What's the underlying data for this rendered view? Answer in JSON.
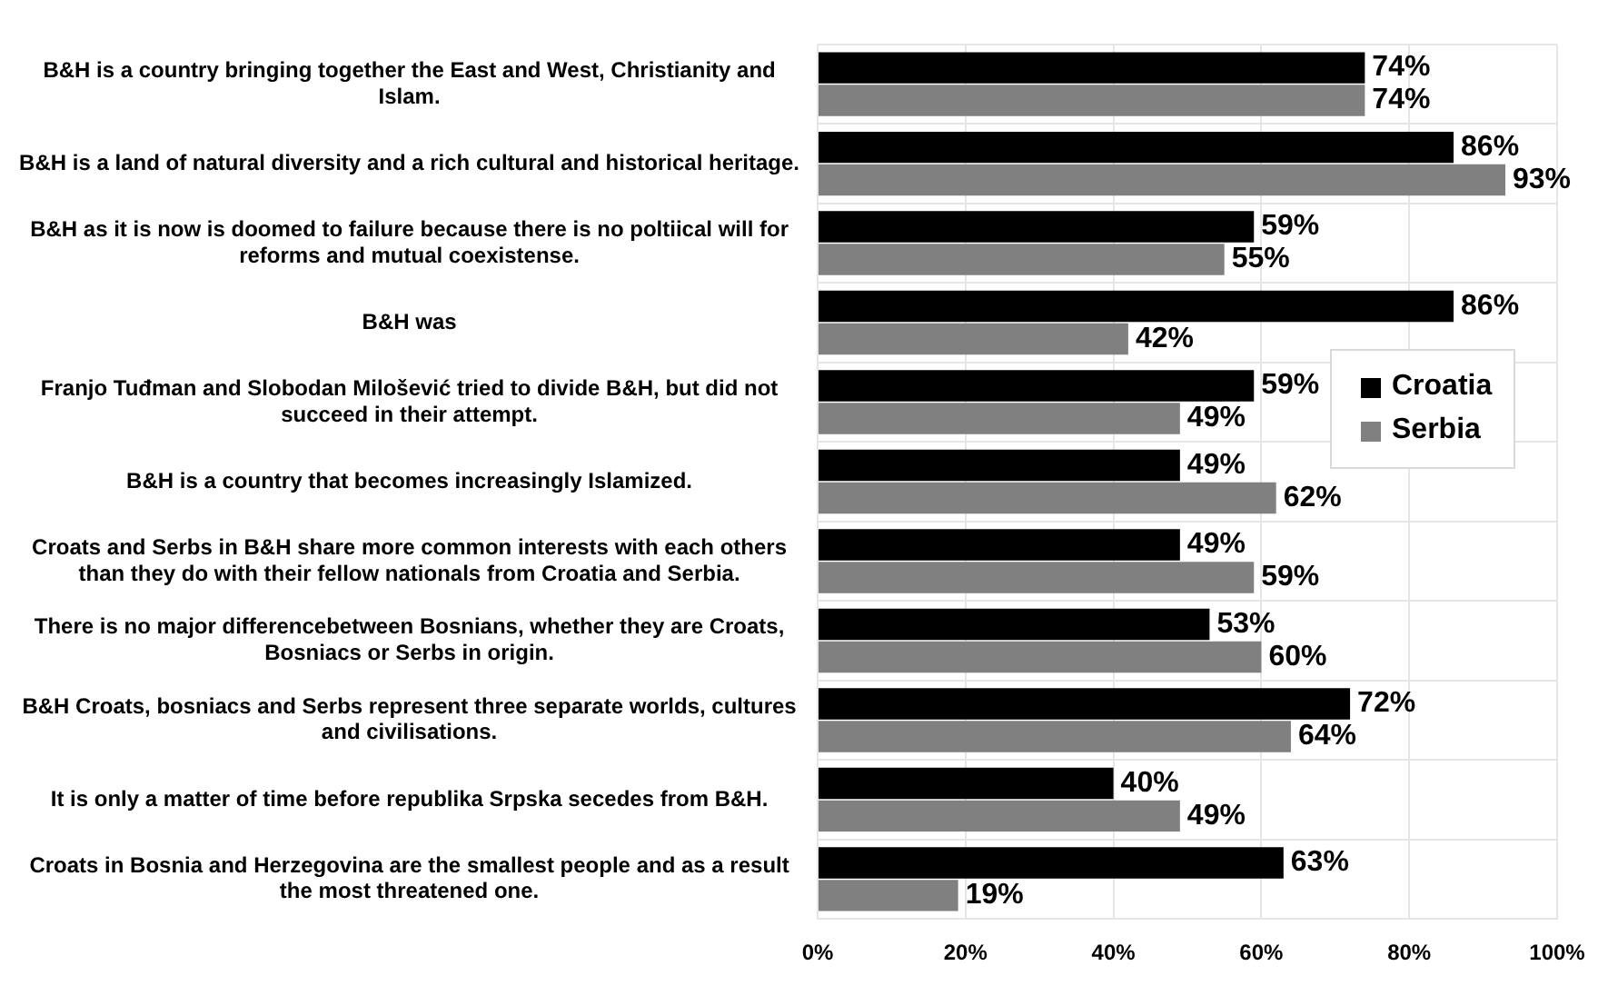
{
  "chart_data": {
    "type": "bar",
    "orientation": "horizontal",
    "categories": [
      "B&H is a country bringing together the East and West, Christianity and Islam.",
      "B&H is a land of natural diversity and a rich cultural and historical heritage.",
      "B&H as it is now is doomed to failure because there is no poltiical will for reforms and mutual coexistense.",
      "B&H was",
      "Franjo Tuđman and Slobodan Milošević tried to divide B&H, but did not succeed in their attempt.",
      "B&H is a country that becomes increasingly Islamized.",
      "Croats and Serbs in B&H share more common interests with each others than they do with their fellow nationals from Croatia and Serbia.",
      "There is no major differencebetween Bosnians, whether they are Croats, Bosniacs or Serbs in origin.",
      "B&H Croats, bosniacs and Serbs represent three separate worlds, cultures and civilisations.",
      "It is only a matter of time before republika Srpska secedes from B&H.",
      "Croats in Bosnia and Herzegovina are the smallest people and as a result the most threatened one."
    ],
    "series": [
      {
        "name": "Croatia",
        "color": "#000000",
        "values": [
          74,
          86,
          59,
          86,
          59,
          49,
          49,
          53,
          72,
          40,
          63
        ],
        "value_labels": [
          "74%",
          "86%",
          "59%",
          "86%",
          "59%",
          "49%",
          "49%",
          "53%",
          "72%",
          "40%",
          "63%"
        ]
      },
      {
        "name": "Serbia",
        "color": "#808080",
        "values": [
          74,
          93,
          55,
          42,
          49,
          62,
          59,
          60,
          64,
          49,
          19
        ],
        "value_labels": [
          "74%",
          "93%",
          "55%",
          "42%",
          "49%",
          "62%",
          "59%",
          "60%",
          "64%",
          "49%",
          "19%"
        ]
      }
    ],
    "xlim": [
      0,
      100
    ],
    "xticks": [
      {
        "value": 0,
        "label": "0%"
      },
      {
        "value": 20,
        "label": "20%"
      },
      {
        "value": 40,
        "label": "40%"
      },
      {
        "value": 60,
        "label": "60%"
      },
      {
        "value": 80,
        "label": "80%"
      },
      {
        "value": 100,
        "label": "100%"
      }
    ],
    "grid": true,
    "legend": "right"
  }
}
